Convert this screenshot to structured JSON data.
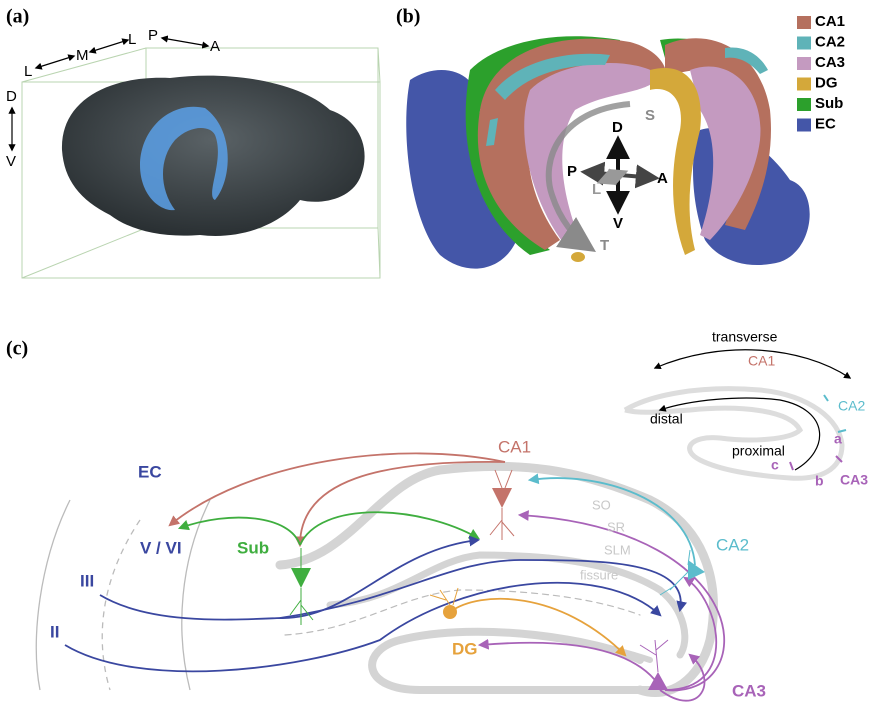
{
  "panel_a": {
    "label": "(a)",
    "orientation": {
      "lateral_left": "L",
      "medial": "M",
      "lateral_right": "L",
      "posterior": "P",
      "anterior": "A",
      "dorsal": "D",
      "ventral": "V"
    }
  },
  "panel_b": {
    "label": "(b)",
    "legend": [
      {
        "name": "CA1",
        "color": "#b5705e"
      },
      {
        "name": "CA2",
        "color": "#5fb3b8"
      },
      {
        "name": "CA3",
        "color": "#c49ac0"
      },
      {
        "name": "DG",
        "color": "#d4a83a"
      },
      {
        "name": "Sub",
        "color": "#2ca02c"
      },
      {
        "name": "EC",
        "color": "#4456a8"
      }
    ],
    "axes": {
      "septal": "S",
      "dorsal": "D",
      "posterior": "P",
      "lateral": "L",
      "anterior": "A",
      "ventral": "V",
      "temporal": "T"
    }
  },
  "panel_c": {
    "label": "(c)",
    "inset": {
      "transverse": "transverse",
      "ca1": "CA1",
      "ca2": "CA2",
      "distal": "distal",
      "proximal": "proximal",
      "a": "a",
      "b": "b",
      "c": "c",
      "ca3": "CA3"
    },
    "regions": {
      "ec": "EC",
      "deep_layers": "V / VI",
      "layer_iii": "III",
      "layer_ii": "II",
      "sub": "Sub",
      "ca1": "CA1",
      "ca2": "CA2",
      "dg": "DG",
      "ca3": "CA3"
    },
    "layers": {
      "so": "SO",
      "sr": "SR",
      "slm": "SLM",
      "fissure": "fissure"
    }
  }
}
